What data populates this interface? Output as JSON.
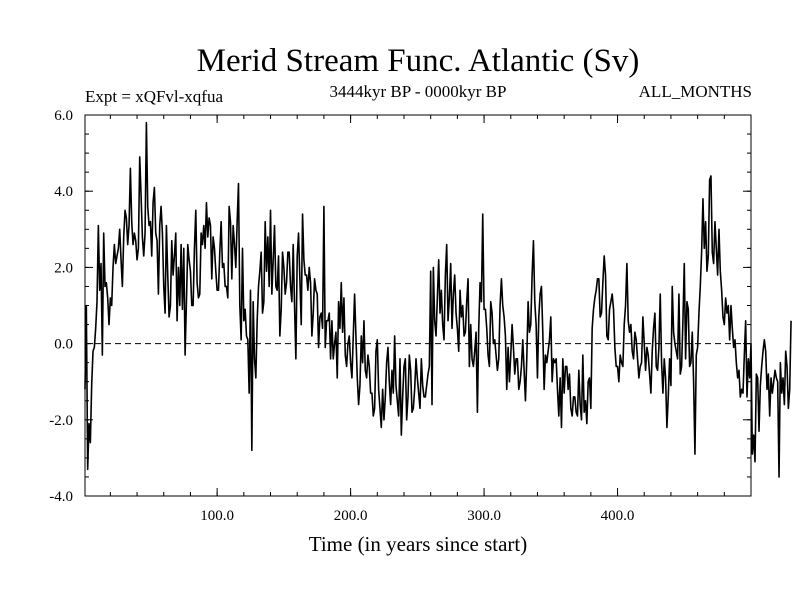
{
  "chart_data": {
    "type": "line",
    "title": "Merid Stream Func. Atlantic (Sv)",
    "subtitle_left": "Expt = xQFvl-xqfua",
    "subtitle_center": "3444kyr BP - 0000kyr BP",
    "subtitle_right": "ALL_MONTHS",
    "xlabel": "Time (in years since start)",
    "ylabel": "",
    "xlim": [
      1,
      500
    ],
    "ylim": [
      -4.0,
      6.0
    ],
    "xticks": [
      100,
      200,
      300,
      400
    ],
    "xtick_labels": [
      "100.0",
      "200.0",
      "300.0",
      "400.0"
    ],
    "yticks": [
      -4,
      -2,
      0,
      2,
      4,
      6
    ],
    "ytick_labels": [
      "-4.0",
      "-2.0",
      "0.0",
      "2.0",
      "4.0",
      "6.0"
    ],
    "zero_line": 0,
    "series": [
      {
        "name": "Merid Stream Func. Atlantic",
        "x_start": 1,
        "x_step": 1,
        "values": [
          -1.2,
          1.0,
          -3.3,
          -2.1,
          -2.6,
          -1.1,
          -0.2,
          -0.1,
          0.4,
          1.1,
          3.1,
          1.4,
          2.1,
          -0.3,
          2.9,
          1.5,
          1.6,
          1.2,
          0.5,
          1.2,
          1.0,
          2.0,
          2.6,
          2.1,
          2.3,
          2.5,
          3.0,
          2.2,
          1.5,
          2.8,
          3.5,
          3.3,
          2.6,
          3.1,
          4.6,
          3.2,
          2.6,
          2.9,
          2.7,
          2.2,
          2.5,
          4.9,
          3.9,
          2.8,
          2.3,
          2.9,
          5.8,
          3.6,
          3.1,
          3.2,
          2.3,
          3.7,
          4.1,
          2.9,
          2.7,
          1.3,
          3.1,
          3.6,
          2.9,
          1.5,
          0.8,
          3.1,
          1.8,
          0.7,
          1.0,
          2.7,
          1.8,
          2.3,
          2.9,
          0.6,
          2.0,
          1.0,
          2.6,
          0.9,
          2.5,
          -0.3,
          1.1,
          2.6,
          2.2,
          1.9,
          1.0,
          1.0,
          2.5,
          3.5,
          1.6,
          1.2,
          1.3,
          2.9,
          2.6,
          3.1,
          2.5,
          3.7,
          2.8,
          3.3,
          3.1,
          1.7,
          2.8,
          2.5,
          1.9,
          1.4,
          1.4,
          2.4,
          3.2,
          2.0,
          2.1,
          1.5,
          1.5,
          1.2,
          3.6,
          3.2,
          1.7,
          3.1,
          2.6,
          2.0,
          3.2,
          4.2,
          1.0,
          0.1,
          2.5,
          0.6,
          0.9,
          0.2,
          0.1,
          -1.3,
          1.4,
          -2.8,
          1.1,
          -0.4,
          -0.9,
          0.6,
          1.5,
          1.9,
          2.4,
          0.8,
          1.1,
          3.2,
          1.9,
          2.8,
          1.5,
          3.5,
          1.3,
          2.2,
          3.1,
          1.5,
          1.4,
          2.3,
          0.2,
          0.9,
          2.4,
          2.0,
          1.3,
          1.6,
          2.4,
          2.4,
          1.5,
          1.1,
          2.6,
          1.0,
          -0.4,
          2.3,
          2.9,
          1.7,
          0.5,
          3.4,
          2.2,
          1.8,
          1.8,
          1.4,
          2.0,
          1.6,
          0.2,
          0.8,
          1.7,
          1.4,
          1.3,
          -0.1,
          0.7,
          0.8,
          0.4,
          3.6,
          -0.1,
          0.6,
          0.6,
          0.8,
          -0.4,
          0.6,
          -0.4,
          0.0,
          0.3,
          -0.9,
          1.1,
          0.4,
          1.6,
          0.3,
          1.2,
          -0.3,
          -0.6,
          0.0,
          0.2,
          -0.5,
          -0.9,
          0.2,
          1.3,
          0.2,
          -0.9,
          -1.6,
          -1.1,
          0.2,
          -0.5,
          0.6,
          -0.7,
          -0.9,
          -0.3,
          -0.6,
          -1.3,
          -1.3,
          -1.9,
          -1.7,
          -0.2,
          0.1,
          -1.2,
          -1.7,
          -2.2,
          -1.2,
          -2.0,
          -1.4,
          -0.5,
          -0.1,
          -1.0,
          -1.6,
          -0.7,
          -1.3,
          0.2,
          -1.1,
          -1.5,
          -1.9,
          -0.4,
          -2.4,
          -1.4,
          -0.6,
          -0.4,
          -2.0,
          -1.4,
          -0.3,
          -0.7,
          -1.8,
          -1.7,
          -1.2,
          -0.4,
          -0.9,
          -1.3,
          -1.7,
          -0.4,
          -1.1,
          -1.4,
          -1.4,
          -1.1,
          -0.8,
          -0.6,
          1.9,
          -1.6,
          2.0,
          0.6,
          0.2,
          1.2,
          2.2,
          0.8,
          1.4,
          0.5,
          0.1,
          1.8,
          2.6,
          0.6,
          1.2,
          2.1,
          0.4,
          1.3,
          1.8,
          0.8,
          0.4,
          -0.2,
          1.4,
          0.7,
          1.0,
          0.2,
          0.3,
          1.1,
          1.7,
          -0.6,
          0.5,
          -0.4,
          -0.6,
          -0.2,
          0.3,
          -1.8,
          0.4,
          1.6,
          1.1,
          3.4,
          0.9,
          0.9,
          0.4,
          -0.3,
          -0.6,
          1.1,
          0.8,
          0.0,
          0.1,
          -0.3,
          -0.7,
          -0.4,
          1.0,
          1.7,
          1.0,
          0.7,
          0.2,
          -1.2,
          -0.1,
          -1.0,
          -0.3,
          0.5,
          -0.1,
          -0.8,
          -0.4,
          -0.4,
          -1.2,
          -1.0,
          -0.6,
          0.1,
          -0.7,
          -1.5,
          -0.4,
          1.1,
          0.3,
          0.5,
          1.8,
          2.7,
          1.1,
          0.5,
          -0.9,
          0.7,
          1.3,
          1.5,
          0.3,
          -1.2,
          -0.3,
          -0.5,
          -0.2,
          0.1,
          0.7,
          -1.0,
          -0.4,
          -0.5,
          -0.4,
          -1.2,
          -1.9,
          -0.9,
          -2.2,
          -0.4,
          -1.3,
          -0.6,
          -0.6,
          -1.2,
          -0.8,
          -1.7,
          -1.9,
          -1.4,
          -1.4,
          -1.8,
          -1.9,
          -0.7,
          -1.6,
          -2.0,
          -0.3,
          -1.8,
          -1.5,
          -2.1,
          -1.0,
          -0.9,
          -1.7,
          0.4,
          0.9,
          1.2,
          1.4,
          1.7,
          1.7,
          0.7,
          0.8,
          1.6,
          2.3,
          1.8,
          0.2,
          0.1,
          0.9,
          1.1,
          1.3,
          0.9,
          -0.1,
          -0.6,
          -0.6,
          -1.0,
          -0.3,
          -0.5,
          -0.6,
          0.5,
          1.0,
          2.1,
          0.6,
          0.3,
          0.5,
          -0.2,
          -0.4,
          0.3,
          0.1,
          -0.4,
          -0.9,
          -0.6,
          -0.5,
          0.7,
          0.0,
          -0.7,
          -0.1,
          -0.3,
          -0.8,
          -1.3,
          -0.2,
          0.4,
          0.8,
          -0.6,
          -0.7,
          -0.1,
          1.3,
          -0.5,
          -1.3,
          -0.4,
          -0.9,
          -2.2,
          -1.4,
          -0.4,
          -1.1,
          1.5,
          0.3,
          0.0,
          -0.2,
          -0.4,
          1.3,
          -0.8,
          -0.6,
          0.6,
          2.1,
          -0.4,
          1.1,
          0.9,
          -0.6,
          -0.5,
          0.3,
          -1.0,
          -2.9,
          -0.3,
          -0.1,
          0.8,
          1.5,
          2.4,
          3.8,
          2.5,
          3.2,
          1.9,
          2.3,
          4.3,
          4.4,
          2.4,
          2.1,
          3.2,
          2.5,
          1.8,
          3.0,
          1.9,
          1.4,
          0.7,
          0.5,
          1.2,
          0.8,
          1.0,
          0.1,
          1.0,
          0.4,
          -0.1,
          0.1,
          -0.5,
          -0.9,
          -0.7,
          -1.4,
          -1.2,
          -1.3,
          -0.3,
          0.6,
          -1.4,
          -0.4,
          -0.9,
          0.0,
          -2.9,
          -2.4,
          -3.1,
          -0.8,
          -0.9,
          -2.3,
          -1.1,
          -0.6,
          -0.2,
          0.1,
          -0.2,
          -1.2,
          -0.8,
          -1.9,
          -0.9,
          -1.3,
          -1.0,
          -0.7,
          -0.9,
          -1.0,
          -3.5,
          -0.5,
          -1.3,
          -0.9,
          -1.6,
          -0.2,
          -0.6,
          -1.7,
          -1.2,
          0.6
        ]
      }
    ]
  }
}
